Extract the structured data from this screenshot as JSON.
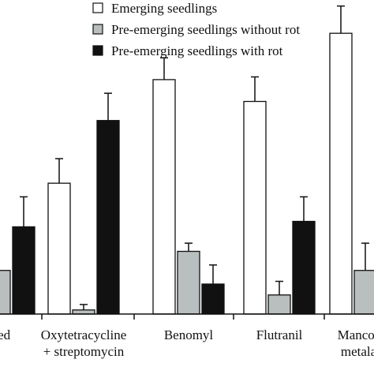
{
  "chart_data": {
    "type": "bar",
    "categories": [
      "ated",
      "Oxytetracycline + streptomycin",
      "Benomyl",
      "Flutranil",
      "Mancozeb metalaxy"
    ],
    "category_lines": [
      [
        "ated"
      ],
      [
        "Oxytetracycline",
        "+ streptomycin"
      ],
      [
        "Benomyl"
      ],
      [
        "Flutranil"
      ],
      [
        "Mancozeb",
        "metalaxy"
      ]
    ],
    "series": [
      {
        "name": "Emerging seedlings",
        "color": "#ffffff",
        "values": [
          null,
          48,
          86,
          78,
          103
        ],
        "errors": [
          null,
          9,
          8,
          9,
          10
        ]
      },
      {
        "name": "Pre-emerging seedlings without rot",
        "color": "#b9bfbf",
        "values": [
          16,
          1.5,
          23,
          7,
          16
        ],
        "errors": [
          null,
          2,
          3,
          5,
          10
        ]
      },
      {
        "name": "Pre-emerging seedlings with rot",
        "color": "#111111",
        "values": [
          32,
          71,
          11,
          34,
          null
        ],
        "errors": [
          11,
          10,
          7,
          9,
          null
        ]
      }
    ],
    "ylim": [
      0,
      110
    ],
    "legend_position": "top-center",
    "grid": false,
    "title": "",
    "xlabel": "",
    "ylabel": ""
  }
}
